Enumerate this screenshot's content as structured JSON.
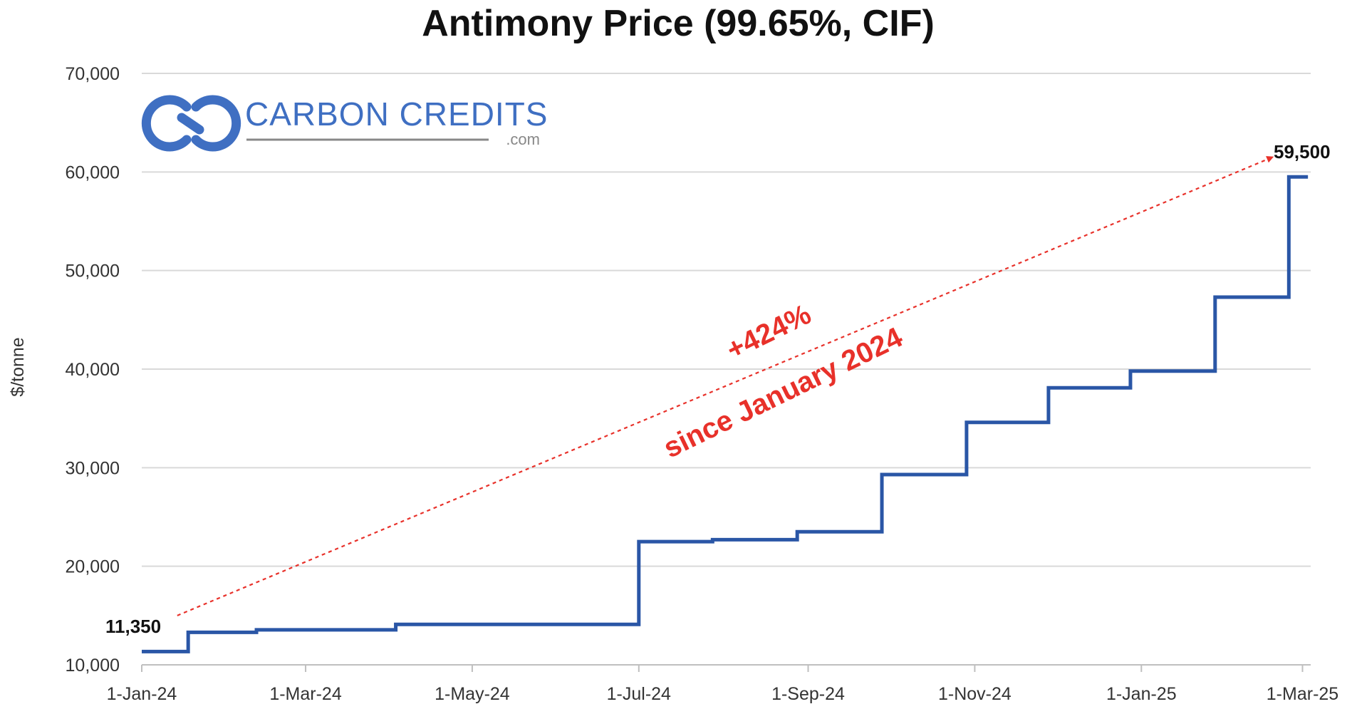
{
  "colors": {
    "line": "#2a56a6",
    "annotation": "#e8312a",
    "grid": "#d9d9d9",
    "logo": "#3f6fc2",
    "logo_sub": "#888888"
  },
  "logo": {
    "icon": "linked-rings-icon",
    "name": "CARBON CREDITS",
    "suffix": ".com"
  },
  "chart_data": {
    "type": "line",
    "title": "Antimony Price (99.65%, CIF)",
    "xlabel": "",
    "ylabel": "$/tonne",
    "ylim": [
      10000,
      70000
    ],
    "yticks": [
      10000,
      20000,
      30000,
      40000,
      50000,
      60000,
      70000
    ],
    "ytick_labels": [
      "10,000",
      "20,000",
      "30,000",
      "40,000",
      "50,000",
      "60,000",
      "70,000"
    ],
    "xlim": [
      "2024-01-01",
      "2025-03-04"
    ],
    "xticks": [
      "2024-01-01",
      "2024-03-01",
      "2024-05-01",
      "2024-07-01",
      "2024-09-01",
      "2024-11-01",
      "2025-01-01",
      "2025-03-01"
    ],
    "xtick_labels": [
      "1-Jan-24",
      "1-Mar-24",
      "1-May-24",
      "1-Jul-24",
      "1-Sep-24",
      "1-Nov-24",
      "1-Jan-25",
      "1-Mar-25"
    ],
    "grid": true,
    "legend": false,
    "step": true,
    "series": [
      {
        "x": [
          "2024-01-01",
          "2024-01-18",
          "2024-02-12",
          "2024-04-03",
          "2024-07-01",
          "2024-07-28",
          "2024-08-28",
          "2024-09-28",
          "2024-10-29",
          "2024-11-28",
          "2024-12-28",
          "2025-01-28",
          "2025-02-24",
          "2025-03-03"
        ],
        "y": [
          11350,
          13300,
          13550,
          14100,
          22500,
          22700,
          23500,
          29300,
          34600,
          38100,
          39800,
          47300,
          59500,
          59500
        ]
      }
    ],
    "data_labels": [
      {
        "text": "11,350",
        "x": "2024-01-01",
        "y": 11350
      },
      {
        "text": "59,500",
        "x": "2025-03-03",
        "y": 59500
      }
    ],
    "annotations": {
      "change": "+424%",
      "since": "since January 2024",
      "arrow_from": {
        "x": "2024-01-14",
        "y": 15000
      },
      "arrow_to": {
        "x": "2025-02-18",
        "y": 61500
      }
    }
  }
}
